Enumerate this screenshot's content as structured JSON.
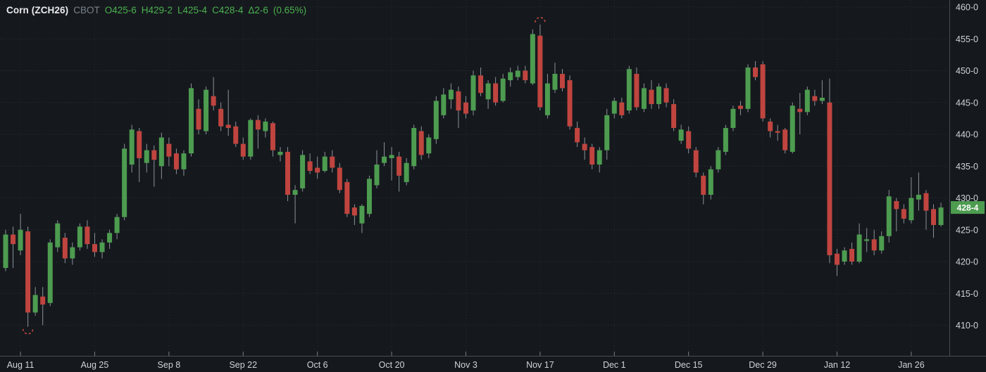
{
  "header": {
    "title": "Corn (ZCH26)",
    "exchange": "CBOT",
    "quote": {
      "open": "O425-6",
      "high": "H429-2",
      "low": "L425-4",
      "close": "C428-4",
      "change": "Δ2-6",
      "change_pct": "(0.65%)"
    }
  },
  "colors": {
    "background": "#15191d",
    "up": "#4d9c50",
    "down": "#c0443f",
    "wick": "#8b929a",
    "grid_h": "#2d333b",
    "grid_v": "#262c33",
    "axis_text": "#ced3d9",
    "axis_line": "#464d55",
    "tick": "#767d85",
    "marker": "#cf4b40",
    "badge_bg": "#4d9c50",
    "badge_text": "#ffffff"
  },
  "y_axis": {
    "labels": [
      "460-0",
      "455-0",
      "450-0",
      "445-0",
      "440-0",
      "435-0",
      "430-0",
      "425-0",
      "420-0",
      "415-0",
      "410-0"
    ],
    "prices": [
      460,
      455,
      450,
      445,
      440,
      435,
      430,
      425,
      420,
      415,
      410
    ],
    "last_price": {
      "text": "428-4",
      "value": 428.5
    }
  },
  "x_axis": {
    "labels": [
      {
        "text": "Aug 11",
        "candle": 2
      },
      {
        "text": "Aug 25",
        "candle": 12
      },
      {
        "text": "Sep 8",
        "candle": 22
      },
      {
        "text": "Sep 22",
        "candle": 32
      },
      {
        "text": "Oct 6",
        "candle": 42
      },
      {
        "text": "Oct 20",
        "candle": 52
      },
      {
        "text": "Nov 3",
        "candle": 62
      },
      {
        "text": "Nov 17",
        "candle": 72
      },
      {
        "text": "Dec 1",
        "candle": 82
      },
      {
        "text": "Dec 15",
        "candle": 92
      },
      {
        "text": "Dec 29",
        "candle": 102
      },
      {
        "text": "Jan 12",
        "candle": 112
      },
      {
        "text": "Jan 26",
        "candle": 122
      }
    ]
  },
  "chart_data": {
    "type": "candlestick",
    "title": "Corn (ZCH26) CBOT daily",
    "price_format": "US cents and eighths per bushel",
    "price_min": 410,
    "price_max": 460,
    "grid": true,
    "ohlc_keys": [
      "open",
      "high",
      "low",
      "close"
    ],
    "candles": [
      [
        419.0,
        425.0,
        418.5,
        424.25
      ],
      [
        424.25,
        425.5,
        419.0,
        422.75
      ],
      [
        421.75,
        427.5,
        421.0,
        425.0
      ],
      [
        424.75,
        425.5,
        409.75,
        412.0
      ],
      [
        412.0,
        416.0,
        411.5,
        414.75
      ],
      [
        414.5,
        416.0,
        410.0,
        413.25
      ],
      [
        413.5,
        423.5,
        413.0,
        423.0
      ],
      [
        422.25,
        426.5,
        421.5,
        426.0
      ],
      [
        423.75,
        424.5,
        419.75,
        420.5
      ],
      [
        420.5,
        423.0,
        419.5,
        422.25
      ],
      [
        422.25,
        426.0,
        421.75,
        425.5
      ],
      [
        425.5,
        426.5,
        422.0,
        422.75
      ],
      [
        422.75,
        424.5,
        420.75,
        421.5
      ],
      [
        421.5,
        423.5,
        420.5,
        423.0
      ],
      [
        423.0,
        425.0,
        422.0,
        424.5
      ],
      [
        424.5,
        427.5,
        423.5,
        427.0
      ],
      [
        427.0,
        438.5,
        426.5,
        437.75
      ],
      [
        435.25,
        441.5,
        434.0,
        440.75
      ],
      [
        440.5,
        441.0,
        432.5,
        436.25
      ],
      [
        435.5,
        438.5,
        434.0,
        437.5
      ],
      [
        437.5,
        438.25,
        431.75,
        436.0
      ],
      [
        435.0,
        440.25,
        433.0,
        439.5
      ],
      [
        438.5,
        439.5,
        435.0,
        436.5
      ],
      [
        437.0,
        437.75,
        433.75,
        434.5
      ],
      [
        434.5,
        437.5,
        433.5,
        437.0
      ],
      [
        437.0,
        448.0,
        436.5,
        447.25
      ],
      [
        444.0,
        445.5,
        440.0,
        440.75
      ],
      [
        440.5,
        447.5,
        440.0,
        447.0
      ],
      [
        446.0,
        449.0,
        443.75,
        444.5
      ],
      [
        444.0,
        445.0,
        440.5,
        441.25
      ],
      [
        441.5,
        447.0,
        439.75,
        441.0
      ],
      [
        441.25,
        442.0,
        438.0,
        438.5
      ],
      [
        438.5,
        439.5,
        436.0,
        436.5
      ],
      [
        436.5,
        442.5,
        436.0,
        442.25
      ],
      [
        442.25,
        443.0,
        437.75,
        440.75
      ],
      [
        440.5,
        442.5,
        439.5,
        442.0
      ],
      [
        441.75,
        442.0,
        436.5,
        437.5
      ],
      [
        436.75,
        438.0,
        435.75,
        437.25
      ],
      [
        437.25,
        438.0,
        429.5,
        430.5
      ],
      [
        430.5,
        432.0,
        426.0,
        431.25
      ],
      [
        431.5,
        437.5,
        431.0,
        436.75
      ],
      [
        435.75,
        437.0,
        433.75,
        434.25
      ],
      [
        434.75,
        436.5,
        433.0,
        434.0
      ],
      [
        434.25,
        437.25,
        434.0,
        436.5
      ],
      [
        436.5,
        437.5,
        434.0,
        434.75
      ],
      [
        434.75,
        435.5,
        430.75,
        431.25
      ],
      [
        432.5,
        433.0,
        427.0,
        427.5
      ],
      [
        428.5,
        429.0,
        425.75,
        427.25
      ],
      [
        426.0,
        429.0,
        424.5,
        428.75
      ],
      [
        427.5,
        433.5,
        427.0,
        433.0
      ],
      [
        432.0,
        437.5,
        431.5,
        435.25
      ],
      [
        435.5,
        438.75,
        435.0,
        436.5
      ],
      [
        436.25,
        438.0,
        432.75,
        436.75
      ],
      [
        436.5,
        437.25,
        431.0,
        433.5
      ],
      [
        432.5,
        436.25,
        432.0,
        435.5
      ],
      [
        435.0,
        441.5,
        434.5,
        441.0
      ],
      [
        440.5,
        441.25,
        436.0,
        436.75
      ],
      [
        437.0,
        440.0,
        436.25,
        439.5
      ],
      [
        439.25,
        446.0,
        438.5,
        445.25
      ],
      [
        443.0,
        447.25,
        442.5,
        446.25
      ],
      [
        445.5,
        448.0,
        444.0,
        447.0
      ],
      [
        446.75,
        447.5,
        441.0,
        443.75
      ],
      [
        445.0,
        446.0,
        442.5,
        443.25
      ],
      [
        443.75,
        450.0,
        443.0,
        449.25
      ],
      [
        449.25,
        450.5,
        446.0,
        446.5
      ],
      [
        445.5,
        448.5,
        444.0,
        448.0
      ],
      [
        448.0,
        449.0,
        444.5,
        445.0
      ],
      [
        445.25,
        449.5,
        445.0,
        448.75
      ],
      [
        448.5,
        450.5,
        447.5,
        449.75
      ],
      [
        449.0,
        450.75,
        448.5,
        450.0
      ],
      [
        450.0,
        450.75,
        448.0,
        448.5
      ],
      [
        448.0,
        456.5,
        447.75,
        455.75
      ],
      [
        455.5,
        457.25,
        443.75,
        444.25
      ],
      [
        443.0,
        449.5,
        442.5,
        448.0
      ],
      [
        447.0,
        451.25,
        446.5,
        449.5
      ],
      [
        449.5,
        450.25,
        446.75,
        447.25
      ],
      [
        448.5,
        449.25,
        440.75,
        441.25
      ],
      [
        441.0,
        442.0,
        438.0,
        438.75
      ],
      [
        438.5,
        439.5,
        436.0,
        437.5
      ],
      [
        438.0,
        438.5,
        434.5,
        435.25
      ],
      [
        435.25,
        438.0,
        434.0,
        437.5
      ],
      [
        437.5,
        444.0,
        436.0,
        443.0
      ],
      [
        443.25,
        445.75,
        442.5,
        445.25
      ],
      [
        445.0,
        445.75,
        442.5,
        443.0
      ],
      [
        443.75,
        450.75,
        443.25,
        450.25
      ],
      [
        449.5,
        450.5,
        443.75,
        444.25
      ],
      [
        444.0,
        448.0,
        443.5,
        447.25
      ],
      [
        447.0,
        448.5,
        444.0,
        444.75
      ],
      [
        444.75,
        448.0,
        444.0,
        447.5
      ],
      [
        447.25,
        448.0,
        444.25,
        445.0
      ],
      [
        444.75,
        445.5,
        440.5,
        441.0
      ],
      [
        439.0,
        441.5,
        438.5,
        440.75
      ],
      [
        440.5,
        441.25,
        437.0,
        437.75
      ],
      [
        437.5,
        438.0,
        433.25,
        434.0
      ],
      [
        433.5,
        434.0,
        429.0,
        430.5
      ],
      [
        430.5,
        435.0,
        429.75,
        434.5
      ],
      [
        434.5,
        438.0,
        434.0,
        437.5
      ],
      [
        437.25,
        441.5,
        436.75,
        441.0
      ],
      [
        441.0,
        444.5,
        440.5,
        444.0
      ],
      [
        444.5,
        445.25,
        443.0,
        444.0
      ],
      [
        444.0,
        451.0,
        443.5,
        450.5
      ],
      [
        450.5,
        451.5,
        448.5,
        449.0
      ],
      [
        451.0,
        451.5,
        442.0,
        442.5
      ],
      [
        442.0,
        442.5,
        439.5,
        440.5
      ],
      [
        440.5,
        441.5,
        439.0,
        440.25
      ],
      [
        440.75,
        441.0,
        437.0,
        437.5
      ],
      [
        437.25,
        445.0,
        437.0,
        444.5
      ],
      [
        444.0,
        446.5,
        440.0,
        443.5
      ],
      [
        443.5,
        447.5,
        443.0,
        447.0
      ],
      [
        446.0,
        447.0,
        444.5,
        445.25
      ],
      [
        445.25,
        448.5,
        444.75,
        445.75
      ],
      [
        445.0,
        448.75,
        419.75,
        421.0
      ],
      [
        421.25,
        422.0,
        417.75,
        419.5
      ],
      [
        420.0,
        422.25,
        419.5,
        421.75
      ],
      [
        422.0,
        423.0,
        419.5,
        420.0
      ],
      [
        420.0,
        426.0,
        419.75,
        424.25
      ],
      [
        423.25,
        425.25,
        421.5,
        423.5
      ],
      [
        423.5,
        425.0,
        421.0,
        421.75
      ],
      [
        421.75,
        424.75,
        421.25,
        424.0
      ],
      [
        424.0,
        431.25,
        423.0,
        430.25
      ],
      [
        429.5,
        430.0,
        424.75,
        428.25
      ],
      [
        428.25,
        429.0,
        426.0,
        426.75
      ],
      [
        426.5,
        433.25,
        426.0,
        430.0
      ],
      [
        429.75,
        434.0,
        428.0,
        430.5
      ],
      [
        430.75,
        431.25,
        425.0,
        428.0
      ],
      [
        428.25,
        429.0,
        423.75,
        425.75
      ],
      [
        425.75,
        429.25,
        425.5,
        428.5
      ]
    ],
    "markers": [
      {
        "candle": 3,
        "point": "low",
        "label": "contract-low-marker"
      },
      {
        "candle": 72,
        "point": "high",
        "label": "contract-high-marker"
      }
    ]
  }
}
